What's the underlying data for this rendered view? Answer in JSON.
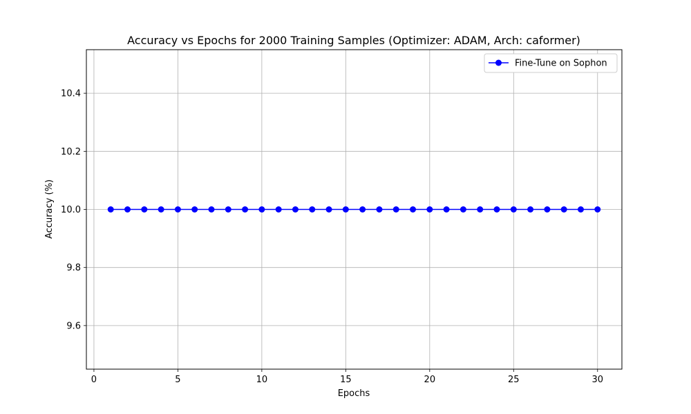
{
  "chart_data": {
    "type": "line",
    "title": "Accuracy vs Epochs for 2000 Training Samples (Optimizer: ADAM, Arch: caformer)",
    "xlabel": "Epochs",
    "ylabel": "Accuracy (%)",
    "xlim": [
      -0.45,
      31.45
    ],
    "ylim": [
      9.45,
      10.55
    ],
    "xticks": [
      0,
      5,
      10,
      15,
      20,
      25,
      30
    ],
    "yticks": [
      9.6,
      9.8,
      10.0,
      10.2,
      10.4
    ],
    "grid": true,
    "legend_position": "top-right",
    "series": [
      {
        "name": "Fine-Tune on Sophon",
        "color": "#0000ff",
        "marker": "circle",
        "x": [
          1,
          2,
          3,
          4,
          5,
          6,
          7,
          8,
          9,
          10,
          11,
          12,
          13,
          14,
          15,
          16,
          17,
          18,
          19,
          20,
          21,
          22,
          23,
          24,
          25,
          26,
          27,
          28,
          29,
          30
        ],
        "y": [
          10,
          10,
          10,
          10,
          10,
          10,
          10,
          10,
          10,
          10,
          10,
          10,
          10,
          10,
          10,
          10,
          10,
          10,
          10,
          10,
          10,
          10,
          10,
          10,
          10,
          10,
          10,
          10,
          10,
          10
        ]
      }
    ]
  }
}
